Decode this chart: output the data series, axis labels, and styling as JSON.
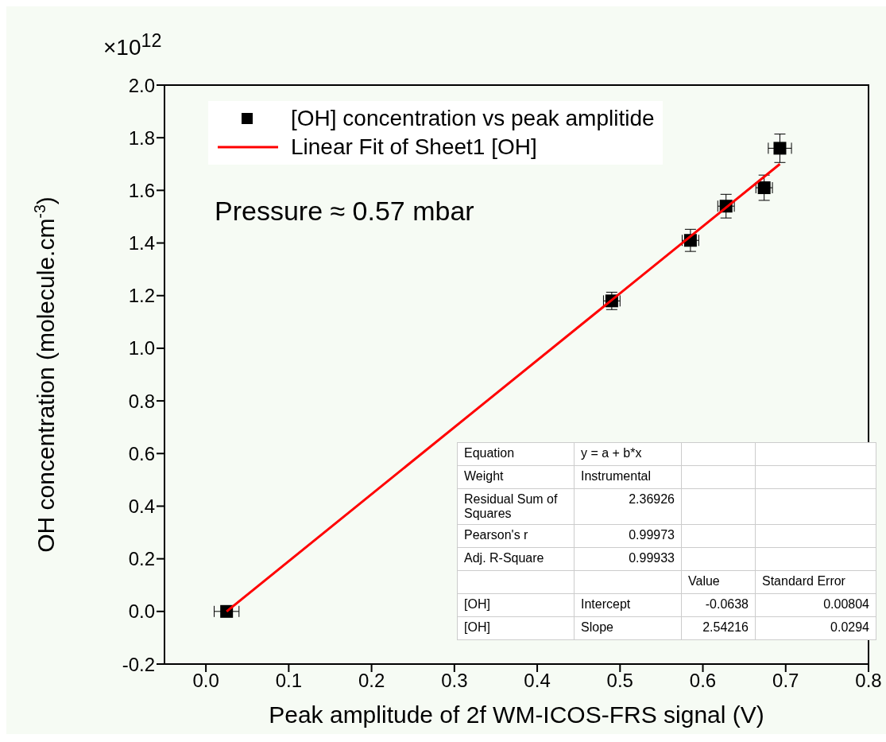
{
  "chart_data": {
    "type": "scatter",
    "xlabel": "Peak amplitude of 2f WM-ICOS-FRS signal (V)",
    "ylabel": "OH concentration (molecule.cm$^{-3}$)",
    "xlim": [
      -0.05,
      0.8
    ],
    "xticks": [
      {
        "value": 0,
        "label": "0.0"
      },
      {
        "value": 0.1,
        "label": "0.1"
      },
      {
        "value": 0.2,
        "label": "0.2"
      },
      {
        "value": 0.3,
        "label": "0.3"
      },
      {
        "value": 0.4,
        "label": "0.4"
      },
      {
        "value": 0.5,
        "label": "0.5"
      },
      {
        "value": 0.6,
        "label": "0.6"
      },
      {
        "value": 0.7,
        "label": "0.7"
      },
      {
        "value": 0.8,
        "label": "0.8"
      }
    ],
    "ylim": [
      -0.2,
      2.0
    ],
    "yticks": [
      {
        "value": -0.2,
        "label": "-0.2"
      },
      {
        "value": 0,
        "label": "0.0"
      },
      {
        "value": 0.2,
        "label": "0.2"
      },
      {
        "value": 0.4,
        "label": "0.4"
      },
      {
        "value": 0.6,
        "label": "0.6"
      },
      {
        "value": 0.8,
        "label": "0.8"
      },
      {
        "value": 1.0,
        "label": "1.0"
      },
      {
        "value": 1.2,
        "label": "1.2"
      },
      {
        "value": 1.4,
        "label": "1.4"
      },
      {
        "value": 1.6,
        "label": "1.6"
      },
      {
        "value": 1.8,
        "label": "1.8"
      },
      {
        "value": 2.0,
        "label": "2.0"
      }
    ],
    "legend": "top left",
    "series": [
      {
        "name": "[OH] concentration vs peak amplitide",
        "marker": "square",
        "color": "#000000",
        "x": [
          0.025,
          0.49,
          0.585,
          0.628,
          0.674,
          0.693
        ],
        "values": [
          0,
          1.18,
          1.41,
          1.54,
          1.61,
          1.76
        ],
        "errors": [
          0.01,
          0.033,
          0.042,
          0.045,
          0.048,
          0.054
        ],
        "xerrors": [
          0.015,
          0.01,
          0.01,
          0.01,
          0.01,
          0.014
        ]
      },
      {
        "name": "Linear Fit of Sheet1 [OH]",
        "type": "line",
        "color": "#ff0000",
        "x": [
          0.025,
          0.693
        ],
        "values": [
          0,
          1.7
        ]
      }
    ],
    "annotations": [
      "×10$^{12}$",
      "Pressure ≈ 0.57 mbar",
      "Equation",
      "y = a + b*x",
      null,
      null,
      "Weight",
      "Instrumental",
      null,
      null,
      "Residual Sum of Squares",
      "2.36926",
      null,
      null,
      "Pearson's r",
      "0.99973",
      null,
      null,
      "Adj. R-Square",
      "0.99933",
      null,
      null,
      null,
      null,
      "Value",
      "Standard Error",
      "[OH]",
      "Intercept",
      "-0.0638",
      "0.00804",
      "[OH]",
      "Slope",
      "2.54216",
      "0.0294"
    ]
  }
}
